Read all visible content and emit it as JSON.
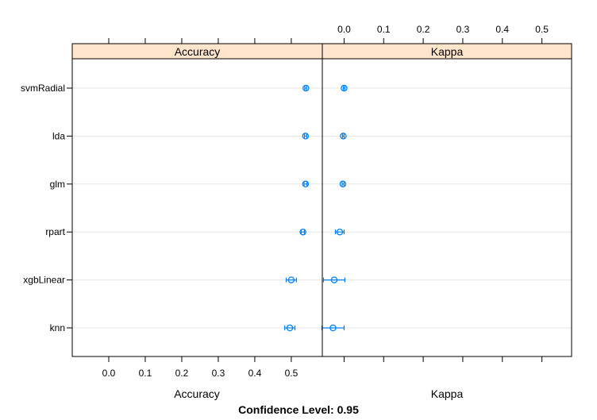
{
  "chart_data": {
    "type": "scatter",
    "subtitle": "Confidence Level: 0.95",
    "models": [
      "svmRadial",
      "lda",
      "glm",
      "rpart",
      "xgbLinear",
      "knn"
    ],
    "x_ticks": [
      "0.0",
      "0.1",
      "0.2",
      "0.3",
      "0.4",
      "0.5"
    ],
    "panels": [
      {
        "name": "Accuracy",
        "xlabel": "Accuracy",
        "xlim": [
          -0.1,
          0.585
        ],
        "points": [
          {
            "model": "svmRadial",
            "estimate": 0.54,
            "lower": 0.537,
            "upper": 0.542
          },
          {
            "model": "lda",
            "estimate": 0.539,
            "lower": 0.536,
            "upper": 0.542
          },
          {
            "model": "glm",
            "estimate": 0.539,
            "lower": 0.535,
            "upper": 0.543
          },
          {
            "model": "rpart",
            "estimate": 0.532,
            "lower": 0.527,
            "upper": 0.536
          },
          {
            "model": "xgbLinear",
            "estimate": 0.5,
            "lower": 0.486,
            "upper": 0.514
          },
          {
            "model": "knn",
            "estimate": 0.496,
            "lower": 0.482,
            "upper": 0.51
          }
        ]
      },
      {
        "name": "Kappa",
        "xlabel": "Kappa",
        "xlim": [
          -0.055,
          0.575
        ],
        "points": [
          {
            "model": "svmRadial",
            "estimate": 0.0,
            "lower": -0.002,
            "upper": 0.002
          },
          {
            "model": "lda",
            "estimate": -0.002,
            "lower": -0.004,
            "upper": 0.0
          },
          {
            "model": "glm",
            "estimate": -0.003,
            "lower": -0.005,
            "upper": 0.0
          },
          {
            "model": "rpart",
            "estimate": -0.011,
            "lower": -0.022,
            "upper": 0.0
          },
          {
            "model": "xgbLinear",
            "estimate": -0.025,
            "lower": -0.052,
            "upper": 0.002
          },
          {
            "model": "knn",
            "estimate": -0.028,
            "lower": -0.056,
            "upper": 0.0
          }
        ]
      }
    ],
    "colors": {
      "point": "#0080ff",
      "strip": "#ffe5cc",
      "grid": "#e6e6e6"
    },
    "grid": true
  }
}
